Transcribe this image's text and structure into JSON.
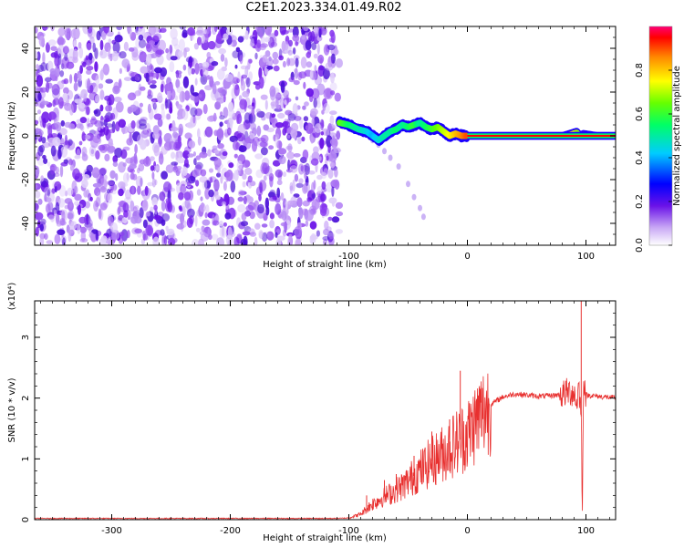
{
  "title": "C2E1.2023.334.01.49.R02",
  "colorbar": {
    "label": "Normalized spectral amplitude",
    "ticks": [
      "0.0",
      "0.2",
      "0.4",
      "0.6",
      "0.8"
    ],
    "tick_values": [
      0.0,
      0.2,
      0.4,
      0.6,
      0.8
    ]
  },
  "chart_data": [
    {
      "type": "heatmap",
      "xlabel": "Height of straight line (km)",
      "ylabel": "Frequency (Hz)",
      "xlim": [
        -365,
        125
      ],
      "ylim": [
        -50,
        50
      ],
      "x_ticks": [
        -300,
        -200,
        -100,
        0,
        100
      ],
      "x_tick_labels": [
        "-300",
        "-200",
        "-100",
        "0",
        "100"
      ],
      "y_ticks": [
        -40,
        -20,
        0,
        20,
        40
      ],
      "y_tick_labels": [
        "-40",
        "-20",
        "0",
        "20",
        "40"
      ],
      "noise_region_x": [
        -365,
        -108
      ],
      "signal_track": {
        "x": [
          -108,
          -100,
          -92,
          -85,
          -80,
          -75,
          -70,
          -65,
          -60,
          -55,
          -50,
          -45,
          -40,
          -35,
          -30,
          -25,
          -20,
          -15,
          -10,
          -5,
          0,
          20,
          40,
          60,
          80,
          92,
          95,
          98,
          110,
          125
        ],
        "y": [
          6,
          5,
          3,
          2,
          0,
          -2,
          0,
          2,
          3,
          5,
          4,
          5,
          6,
          4,
          3,
          4,
          2,
          0,
          1,
          0,
          0,
          0,
          0,
          0,
          0,
          2,
          0,
          1,
          0,
          0
        ],
        "amplitude": [
          0.65,
          0.55,
          0.5,
          0.45,
          0.4,
          0.45,
          0.5,
          0.5,
          0.55,
          0.5,
          0.55,
          0.6,
          0.5,
          0.55,
          0.6,
          0.65,
          0.7,
          0.75,
          0.8,
          0.85,
          0.9,
          0.92,
          0.95,
          0.95,
          0.95,
          0.7,
          0.6,
          0.9,
          0.95,
          0.95
        ]
      },
      "faint_trail": {
        "x": [
          -80,
          -75,
          -70,
          -65,
          -58,
          -50,
          -45,
          -40,
          -37
        ],
        "y": [
          -2,
          -4,
          -7,
          -10,
          -14,
          -22,
          -28,
          -33,
          -37
        ]
      }
    },
    {
      "type": "line",
      "xlabel": "Height of straight line (km)",
      "ylabel": "SNR (10 * v/v)",
      "scale_label": "(x10⁴)",
      "xlim": [
        -365,
        125
      ],
      "ylim": [
        0,
        36000
      ],
      "x_ticks": [
        -300,
        -200,
        -100,
        0,
        100
      ],
      "x_tick_labels": [
        "-300",
        "-200",
        "-100",
        "0",
        "100"
      ],
      "y_ticks": [
        0,
        10000,
        20000,
        30000
      ],
      "y_tick_labels": [
        "0",
        "1",
        "2",
        "3"
      ],
      "series": [
        {
          "color": "#e8302f",
          "x": [
            -365,
            -300,
            -200,
            -110,
            -100,
            -90,
            -85,
            -80,
            -75,
            -70,
            -65,
            -60,
            -55,
            -50,
            -45,
            -40,
            -35,
            -30,
            -25,
            -20,
            -15,
            -10,
            -5,
            0,
            5,
            10,
            20,
            30,
            40,
            50,
            60,
            70,
            80,
            85,
            90,
            92,
            94,
            96,
            97,
            98,
            100,
            110,
            125
          ],
          "y": [
            200,
            200,
            200,
            200,
            300,
            900,
            1800,
            2600,
            3200,
            3800,
            4300,
            4900,
            5500,
            6300,
            7200,
            8000,
            8800,
            9600,
            10300,
            11000,
            11800,
            12600,
            13300,
            14000,
            15500,
            17000,
            19000,
            20200,
            20700,
            20500,
            20300,
            20400,
            20600,
            21000,
            21000,
            19000,
            22000,
            17000,
            2000,
            24000,
            20500,
            20300,
            20000
          ],
          "spikes": [
            {
              "x": -85,
              "y": 4000
            },
            {
              "x": -70,
              "y": 6500
            },
            {
              "x": -60,
              "y": 7500
            },
            {
              "x": -45,
              "y": 10500
            },
            {
              "x": -30,
              "y": 14500
            },
            {
              "x": -15,
              "y": 16500
            },
            {
              "x": -6,
              "y": 24500
            },
            {
              "x": 96,
              "y": 36000
            }
          ]
        }
      ]
    }
  ]
}
